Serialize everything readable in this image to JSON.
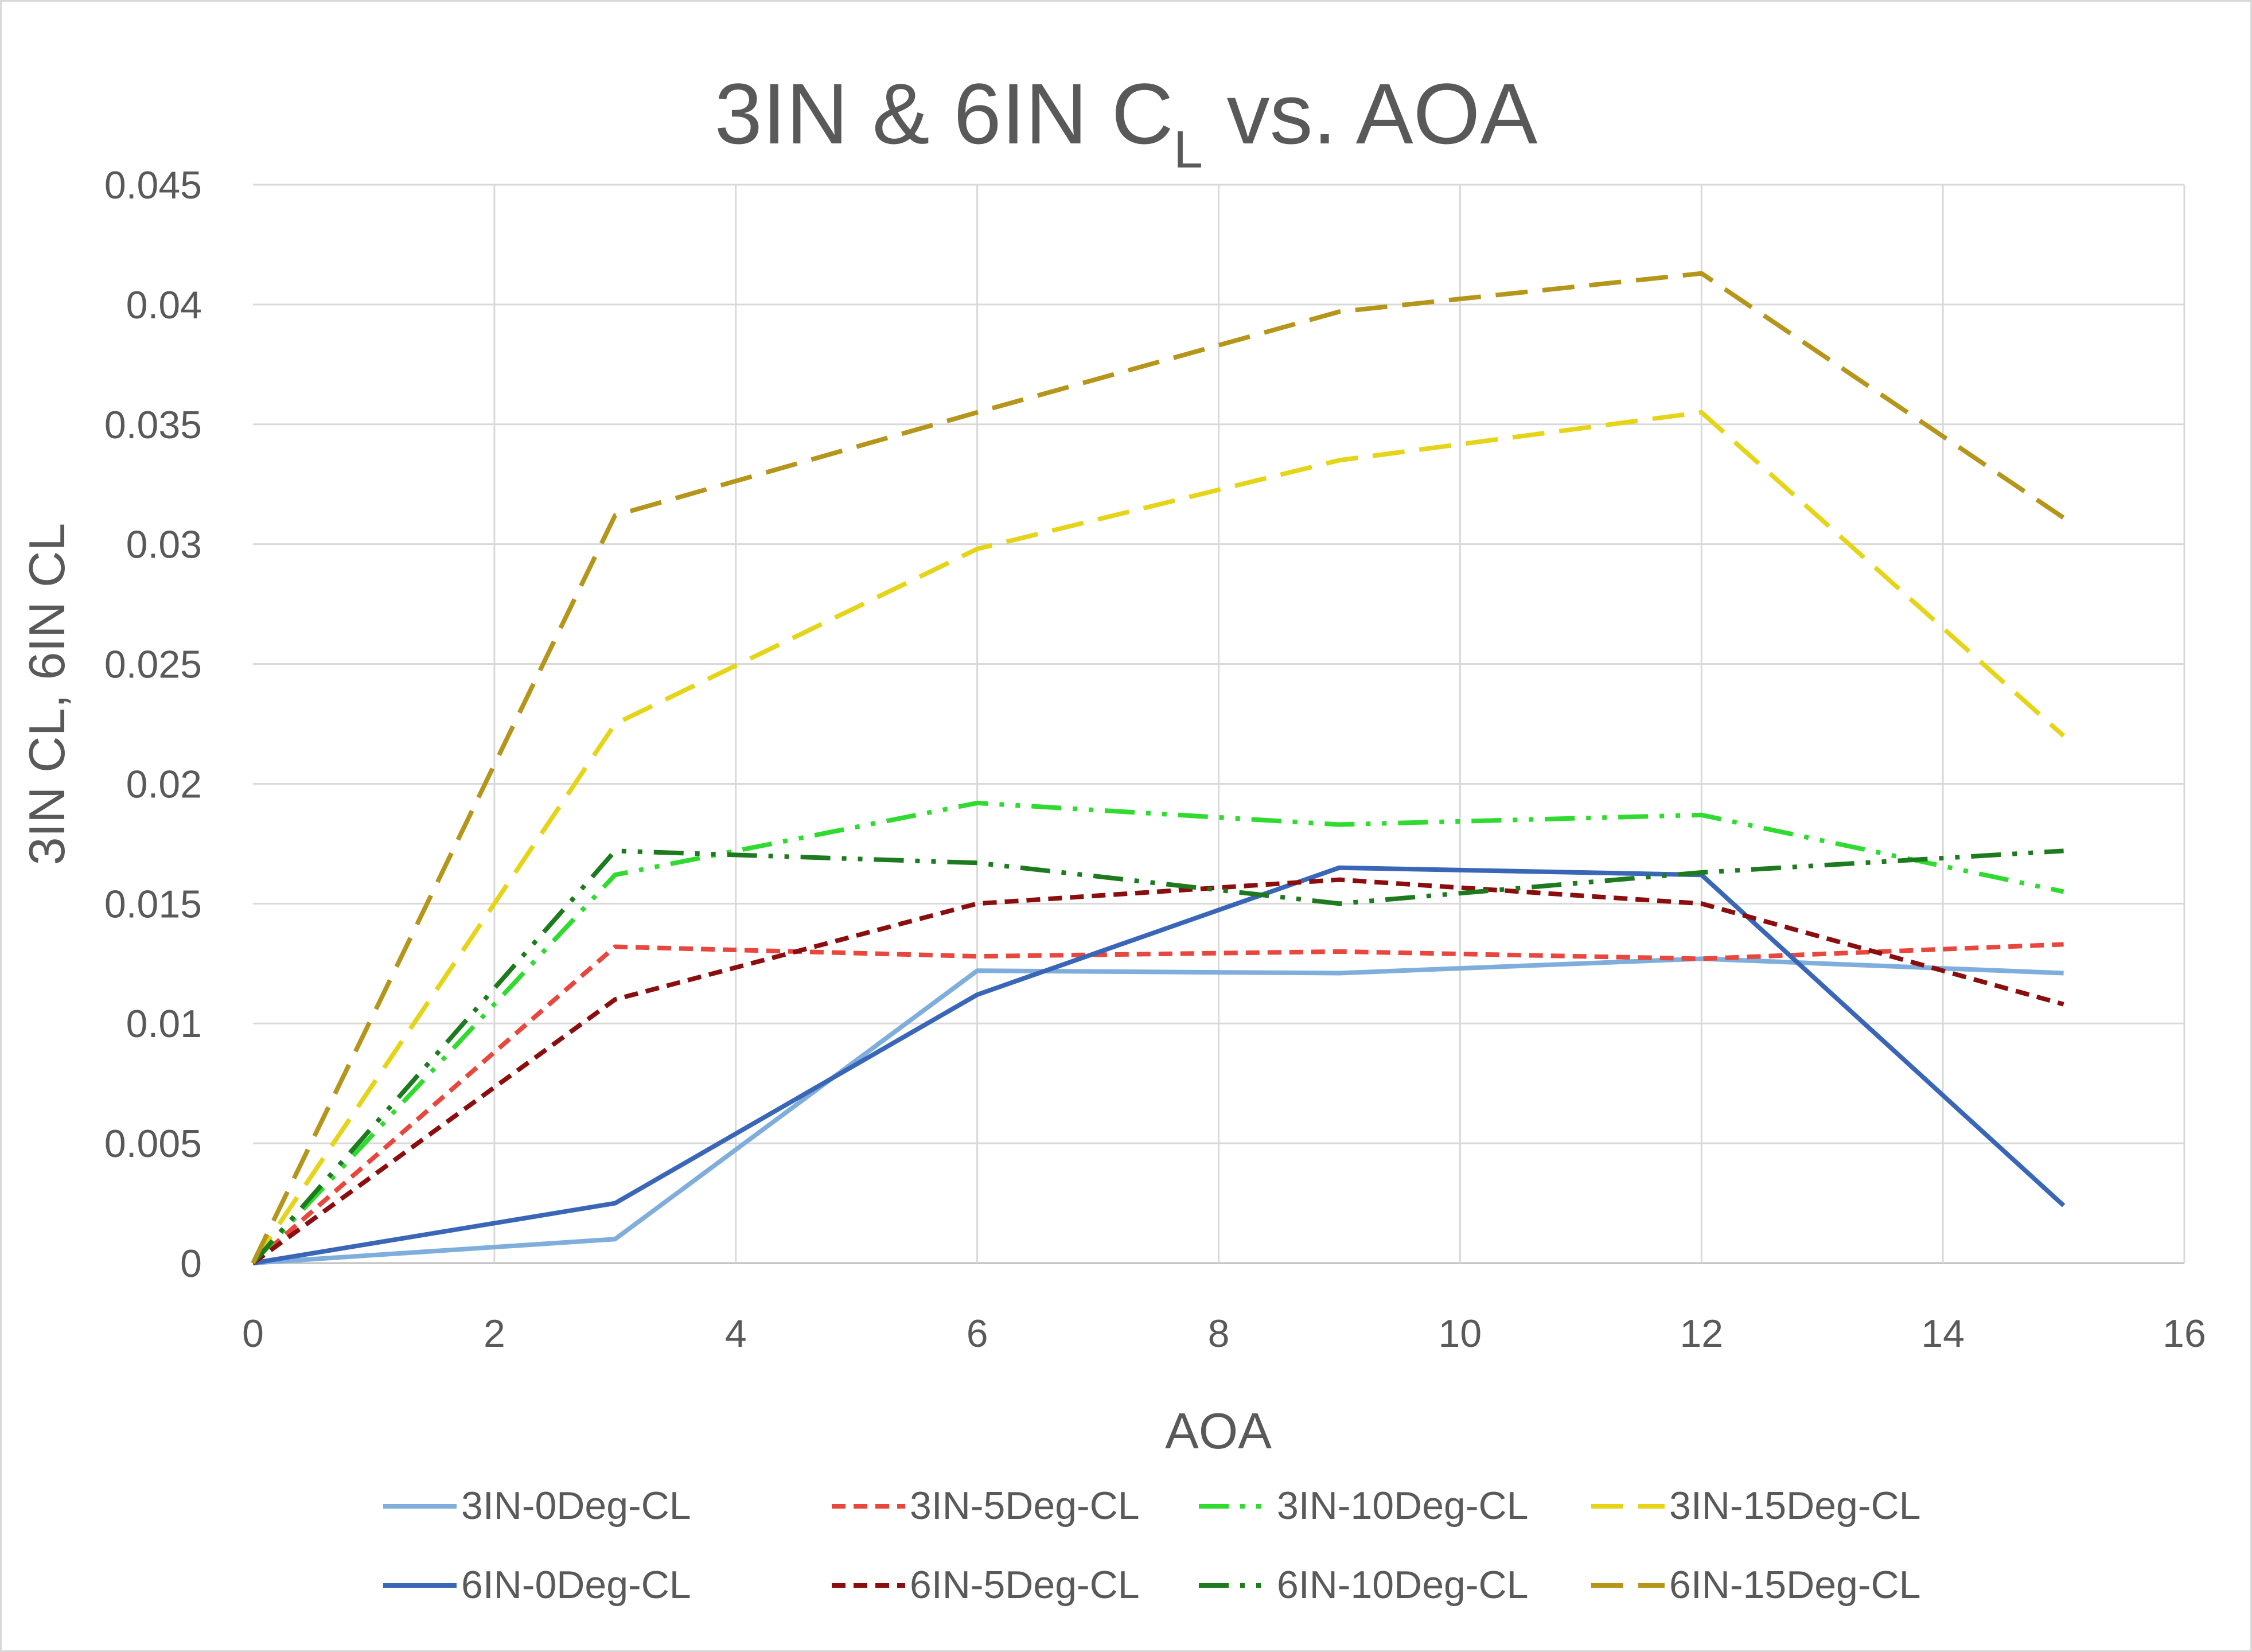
{
  "chart_data": {
    "type": "line",
    "title": "3IN & 6IN C",
    "title_subscript": "L",
    "title_suffix": " vs. AOA",
    "xlabel": "AOA",
    "ylabel": "3IN CL, 6IN CL",
    "xlim": [
      0,
      16
    ],
    "ylim": [
      0,
      0.045
    ],
    "x_ticks": [
      "0",
      "2",
      "4",
      "6",
      "8",
      "10",
      "12",
      "14",
      "16"
    ],
    "y_ticks": [
      "0",
      "0.005",
      "0.01",
      "0.015",
      "0.02",
      "0.025",
      "0.03",
      "0.035",
      "0.04",
      "0.045"
    ],
    "grid": true,
    "legend_position": "bottom",
    "x": [
      0,
      3,
      6,
      9,
      12,
      15
    ],
    "series": [
      {
        "name": "3IN-0Deg-CL",
        "values": [
          0,
          0.001,
          0.0122,
          0.0121,
          0.0127,
          0.0121
        ],
        "color": "#7FAEDC",
        "dash": "solid"
      },
      {
        "name": "3IN-5Deg-CL",
        "values": [
          0,
          0.0132,
          0.0128,
          0.013,
          0.0127,
          0.0133
        ],
        "color": "#E8473E",
        "dash": "short-dash"
      },
      {
        "name": "3IN-10Deg-CL",
        "values": [
          0,
          0.0162,
          0.0192,
          0.0183,
          0.0187,
          0.0155
        ],
        "color": "#2EDB2E",
        "dash": "long-dash-dot-dot"
      },
      {
        "name": "3IN-15Deg-CL",
        "values": [
          0,
          0.0225,
          0.0298,
          0.0335,
          0.0355,
          0.022
        ],
        "color": "#E5D417",
        "dash": "long-dash"
      },
      {
        "name": "6IN-0Deg-CL",
        "values": [
          0,
          0.0025,
          0.0112,
          0.0165,
          0.0162,
          0.0024
        ],
        "color": "#3A66B8",
        "dash": "solid"
      },
      {
        "name": "6IN-5Deg-CL",
        "values": [
          0,
          0.011,
          0.015,
          0.016,
          0.015,
          0.0108
        ],
        "color": "#8B0E0E",
        "dash": "short-dash"
      },
      {
        "name": "6IN-10Deg-CL",
        "values": [
          0,
          0.0172,
          0.0167,
          0.015,
          0.0163,
          0.0172
        ],
        "color": "#1E7A1E",
        "dash": "long-dash-dot-dot"
      },
      {
        "name": "6IN-15Deg-CL",
        "values": [
          0,
          0.0312,
          0.0355,
          0.0397,
          0.0413,
          0.0311
        ],
        "color": "#B5951A",
        "dash": "long-dash"
      }
    ]
  }
}
